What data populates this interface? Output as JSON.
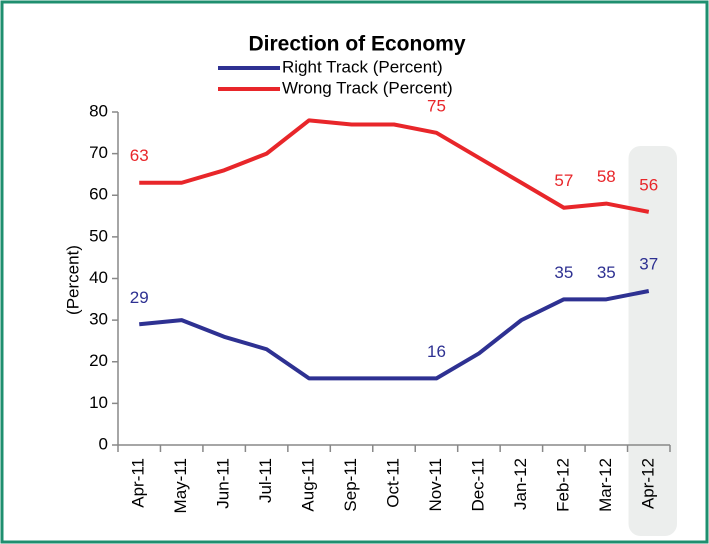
{
  "chart_data": {
    "type": "line",
    "title": "Direction of Economy",
    "ylabel": "(Percent)",
    "categories": [
      "Apr-11",
      "May-11",
      "Jun-11",
      "Jul-11",
      "Aug-11",
      "Sep-11",
      "Oct-11",
      "Nov-11",
      "Dec-11",
      "Jan-12",
      "Feb-12",
      "Mar-12",
      "Apr-12"
    ],
    "series": [
      {
        "name": "Right Track (Percent)",
        "color": "#2e3192",
        "values": [
          29,
          30,
          26,
          23,
          16,
          16,
          16,
          16,
          22,
          30,
          35,
          35,
          37
        ],
        "value_labels": [
          29,
          null,
          null,
          null,
          null,
          null,
          null,
          16,
          null,
          null,
          35,
          35,
          37
        ]
      },
      {
        "name": "Wrong Track (Percent)",
        "color": "#e8262a",
        "values": [
          63,
          63,
          66,
          70,
          78,
          77,
          77,
          75,
          69,
          63,
          57,
          58,
          56
        ],
        "value_labels": [
          63,
          null,
          null,
          null,
          null,
          null,
          null,
          75,
          null,
          null,
          57,
          58,
          56
        ]
      }
    ],
    "ylim": [
      0,
      80
    ],
    "yticks": [
      0,
      10,
      20,
      30,
      40,
      50,
      60,
      70,
      80
    ],
    "grid": false,
    "legend": "top"
  }
}
